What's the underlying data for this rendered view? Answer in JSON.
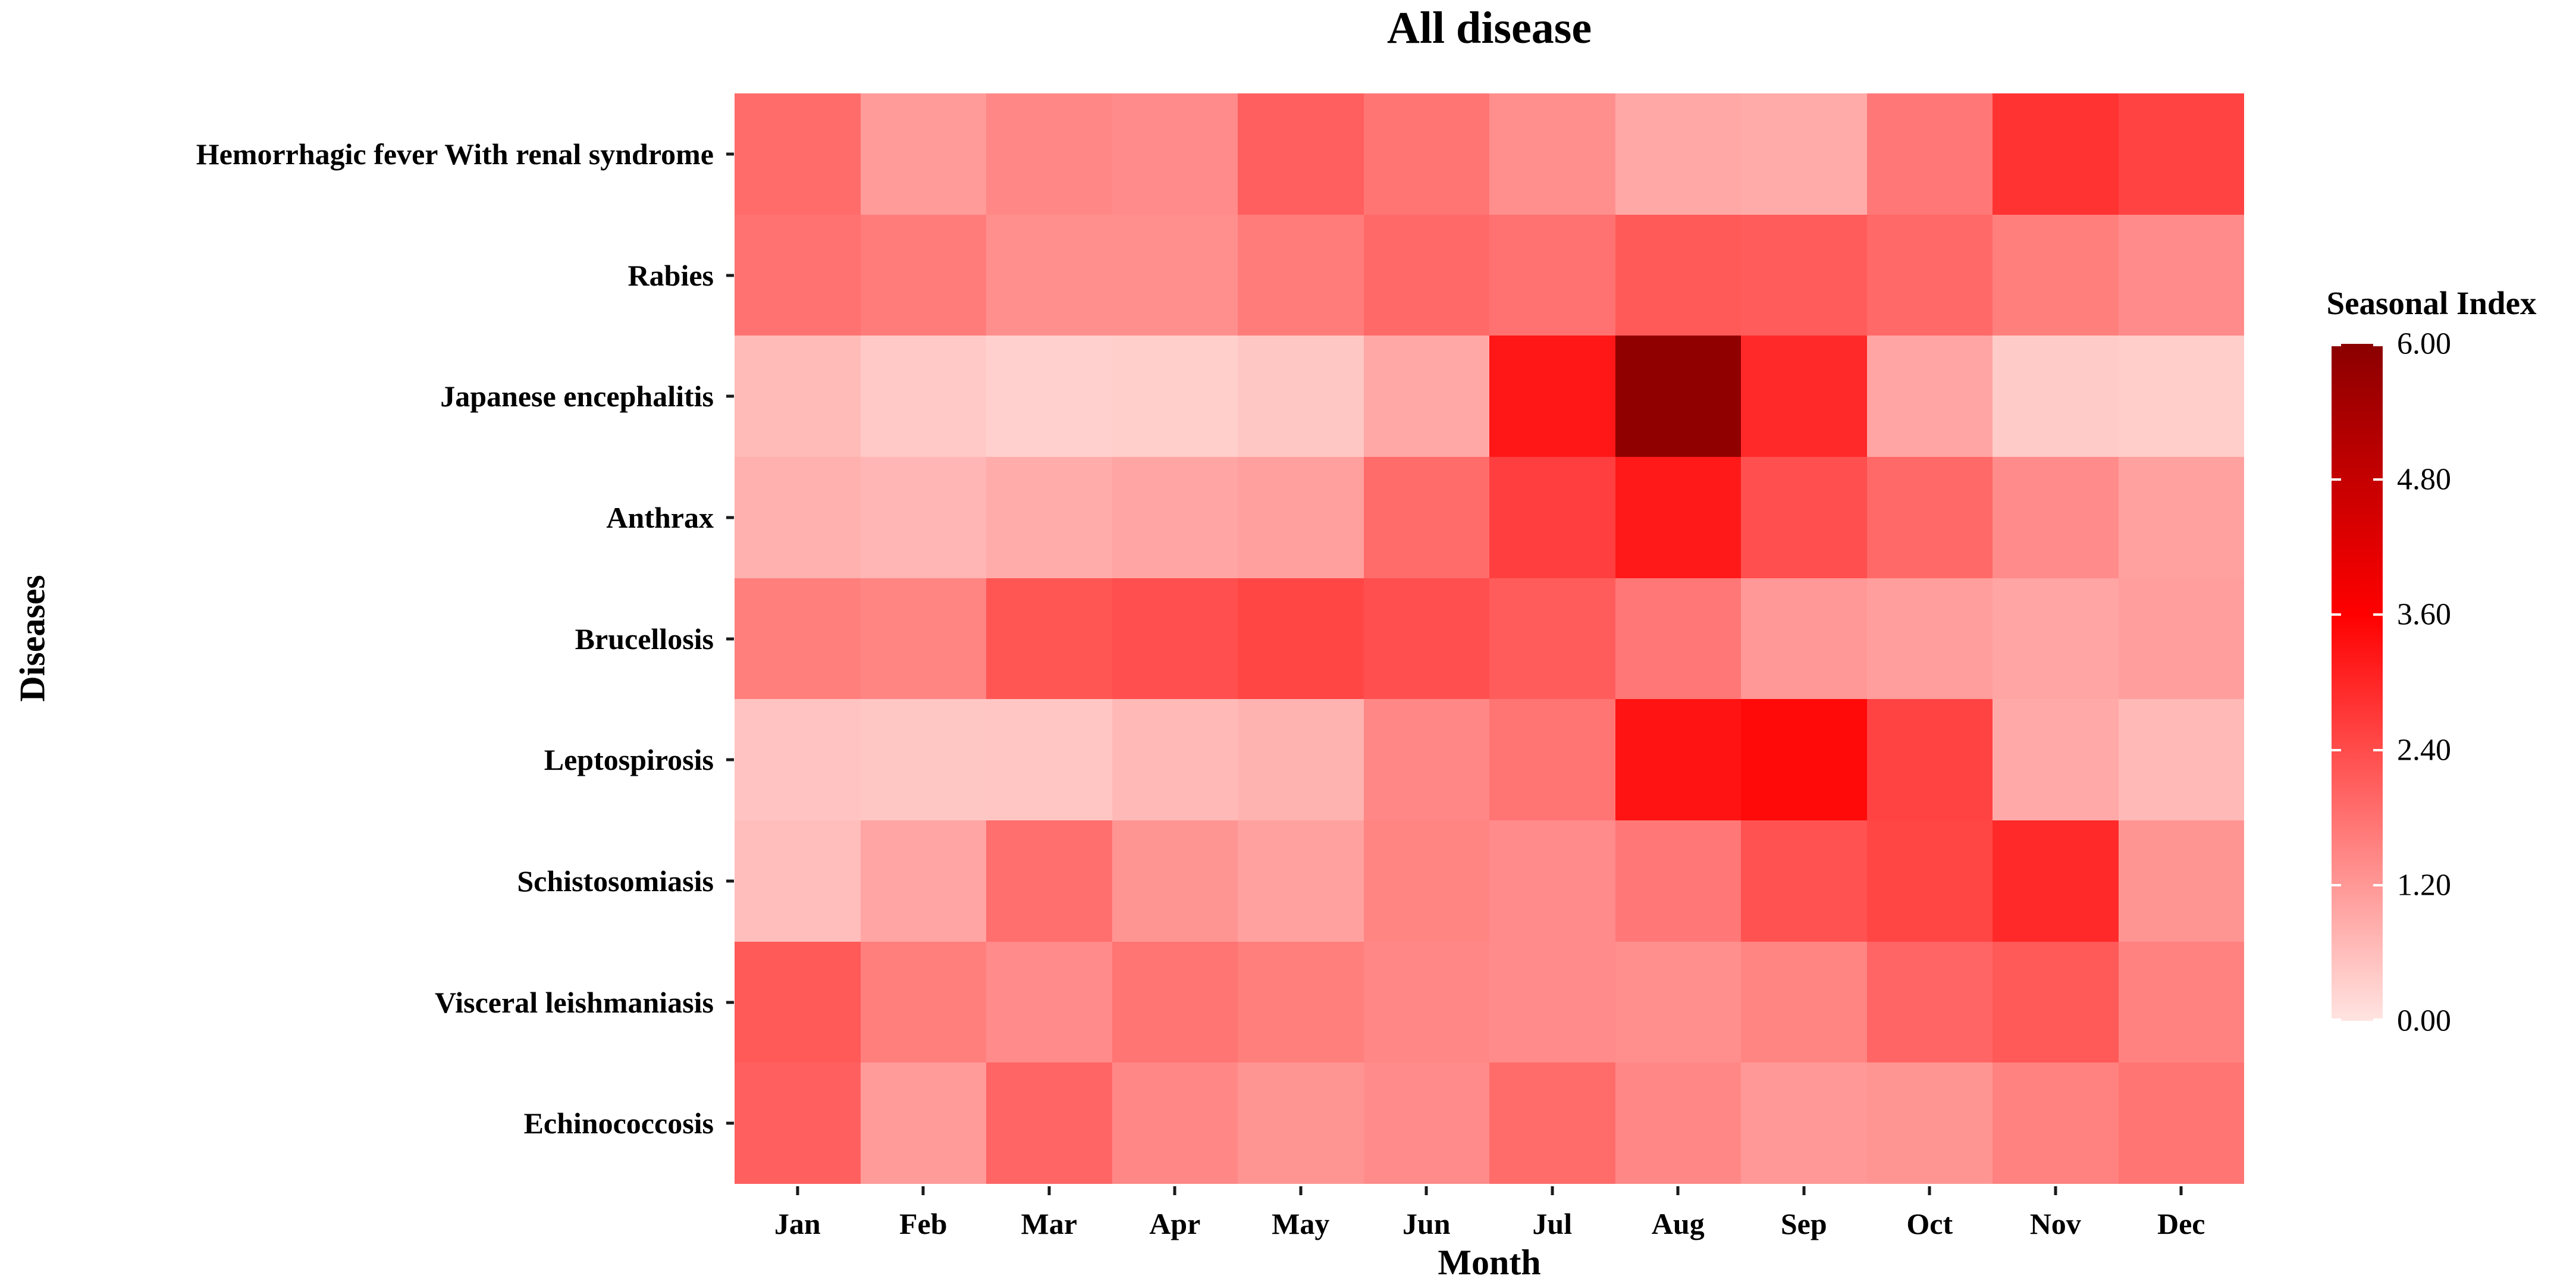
{
  "page": {
    "background": "#ffffff"
  },
  "chart": {
    "title": "All disease",
    "x_axis_title": "Month",
    "y_axis_title": "Diseases",
    "legend_title": "Seasonal Index",
    "legend_tick_labels": [
      "6.00",
      "4.80",
      "3.60",
      "2.40",
      "1.20",
      "0.00"
    ]
  },
  "chart_data": {
    "type": "heatmap",
    "title": "All disease",
    "xlabel": "Month",
    "ylabel": "Diseases",
    "legend_title": "Seasonal Index",
    "legend_position": "right",
    "grid": false,
    "x_categories": [
      "Jan",
      "Feb",
      "Mar",
      "Apr",
      "May",
      "Jun",
      "Jul",
      "Aug",
      "Sep",
      "Oct",
      "Nov",
      "Dec"
    ],
    "y_categories": [
      "Hemorrhagic fever With renal syndrome",
      "Rabies",
      "Japanese encephalitis",
      "Anthrax",
      "Brucellosis",
      "Leptospirosis",
      "Schistosomiasis",
      "Visceral leishmaniasis",
      "Echinococcosis"
    ],
    "series": [
      {
        "name": "Hemorrhagic fever With renal syndrome",
        "values": [
          1.9,
          1.15,
          1.45,
          1.4,
          2.1,
          1.75,
          1.35,
          0.95,
          0.9,
          1.7,
          2.8,
          2.55
        ]
      },
      {
        "name": "Rabies",
        "values": [
          1.8,
          1.65,
          1.35,
          1.35,
          1.65,
          1.95,
          1.8,
          2.2,
          2.15,
          1.95,
          1.6,
          1.4
        ]
      },
      {
        "name": "Japanese encephalitis",
        "values": [
          0.65,
          0.42,
          0.32,
          0.33,
          0.46,
          0.95,
          3.25,
          5.9,
          2.95,
          1.0,
          0.4,
          0.35
        ]
      },
      {
        "name": "Anthrax",
        "values": [
          0.8,
          0.72,
          0.88,
          1.0,
          1.07,
          1.9,
          2.6,
          3.2,
          2.35,
          1.95,
          1.4,
          1.05
        ]
      },
      {
        "name": "Brucellosis",
        "values": [
          1.6,
          1.5,
          2.25,
          2.35,
          2.5,
          2.35,
          2.15,
          1.7,
          1.2,
          1.1,
          1.0,
          1.1
        ]
      },
      {
        "name": "Leptospirosis",
        "values": [
          0.5,
          0.46,
          0.47,
          0.66,
          0.78,
          1.45,
          1.75,
          3.3,
          3.45,
          2.55,
          0.92,
          0.68
        ]
      },
      {
        "name": "Schistosomiasis",
        "values": [
          0.6,
          1.0,
          1.85,
          1.25,
          1.05,
          1.5,
          1.4,
          1.7,
          2.3,
          2.5,
          2.95,
          1.25
        ]
      },
      {
        "name": "Visceral leishmaniasis",
        "values": [
          2.2,
          1.6,
          1.4,
          1.75,
          1.6,
          1.45,
          1.4,
          1.35,
          1.5,
          2.0,
          2.2,
          1.55
        ]
      },
      {
        "name": "Echinococcosis",
        "values": [
          2.1,
          1.15,
          2.0,
          1.45,
          1.25,
          1.4,
          1.9,
          1.45,
          1.2,
          1.25,
          1.55,
          1.75
        ]
      }
    ],
    "value_scale": {
      "name": "Seasonal Index",
      "min": 0.0,
      "max": 6.0,
      "ticks": [
        6.0,
        4.8,
        3.6,
        2.4,
        1.2,
        0.0
      ],
      "color_stops": [
        {
          "value": 0.0,
          "color": "#ffe4e1"
        },
        {
          "value": 3.6,
          "color": "#ff0000"
        },
        {
          "value": 6.0,
          "color": "#8b0000"
        }
      ]
    }
  }
}
